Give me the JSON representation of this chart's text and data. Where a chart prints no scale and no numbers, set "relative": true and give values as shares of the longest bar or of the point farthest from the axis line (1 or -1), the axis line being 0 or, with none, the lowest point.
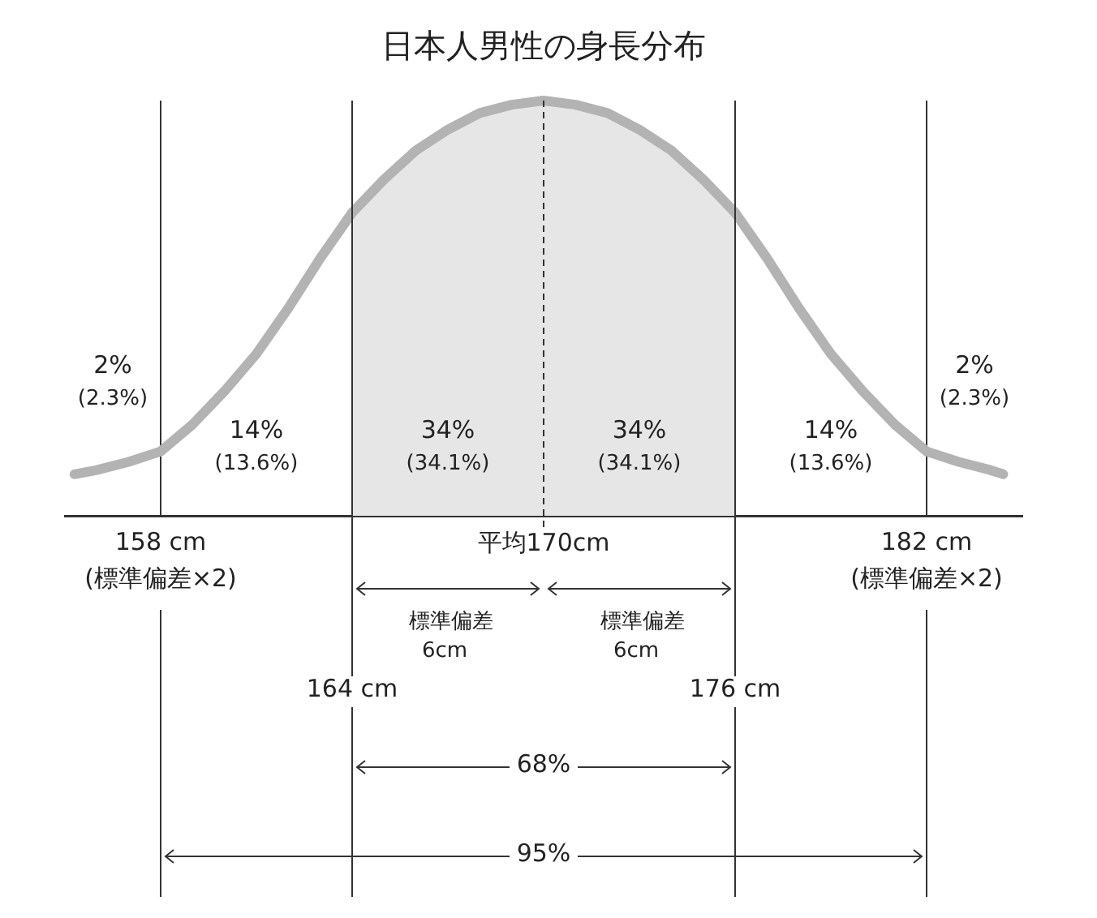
{
  "chart_data": {
    "type": "line",
    "title": "日本人男性の身長分布",
    "relative": true,
    "marker": "none",
    "grid": "x",
    "legend": false,
    "tick_labels": "x",
    "xlim": [
      155,
      185
    ],
    "xticks": [
      {
        "value": 158,
        "label": "158 cm"
      },
      {
        "value": 182,
        "label": "182 cm"
      }
    ],
    "x": [
      155.3,
      156,
      157,
      158,
      159,
      160,
      161,
      162,
      163,
      164,
      165,
      166,
      167,
      168,
      169,
      170,
      171,
      172,
      173,
      174,
      175,
      176,
      177,
      178,
      179,
      180,
      181,
      182,
      183,
      184,
      184.4
    ],
    "series": [
      {
        "color": "#b3b3b3",
        "values": [
          0.1,
          0.11,
          0.13,
          0.155,
          0.22,
          0.3,
          0.39,
          0.5,
          0.62,
          0.73,
          0.81,
          0.88,
          0.93,
          0.97,
          0.99,
          1,
          0.99,
          0.97,
          0.93,
          0.88,
          0.81,
          0.73,
          0.62,
          0.5,
          0.39,
          0.3,
          0.22,
          0.155,
          0.13,
          0.11,
          0.1
        ]
      }
    ],
    "bands": [
      {
        "axis": "x",
        "from": 164,
        "to": 176,
        "color": "#e6e6e6"
      }
    ],
    "ref_lines": [
      {
        "axis": "x",
        "value": 164,
        "label": "164 cm",
        "color": "#333333"
      },
      {
        "axis": "x",
        "value": 170,
        "label": "平均170cm",
        "color": "#333333",
        "line_style": "dashed"
      },
      {
        "axis": "x",
        "value": 176,
        "label": "176 cm",
        "color": "#333333"
      }
    ],
    "annotations": [
      "2%\n(2.3%)",
      "14%\n(13.6%)",
      "34%\n(34.1%)",
      "34%\n(34.1%)",
      "14%\n(13.6%)",
      "2%\n(2.3%)",
      "標準偏差\n6cm",
      "標準偏差\n6cm",
      "68%",
      "95%",
      "(標準偏差×2)",
      "(標準偏差×2)"
    ]
  }
}
